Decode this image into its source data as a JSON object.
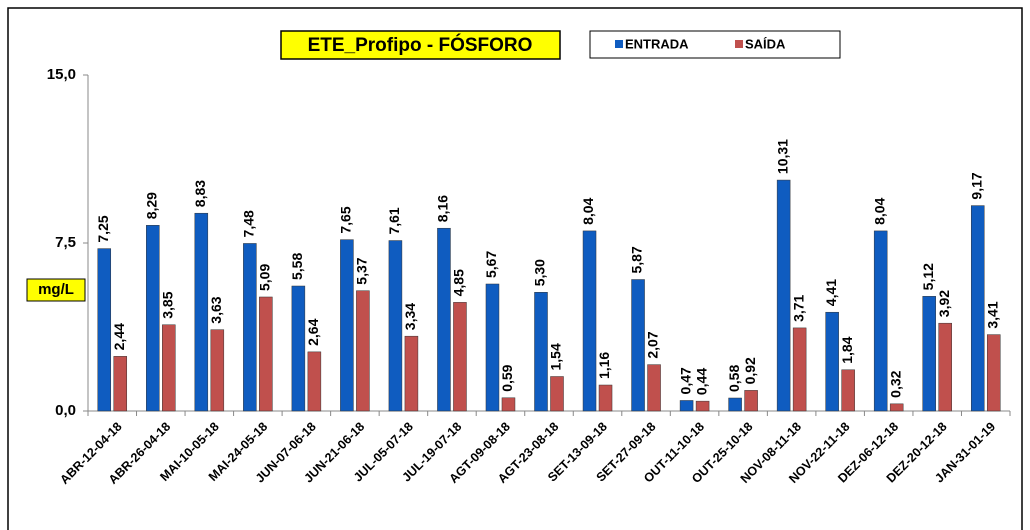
{
  "chart_data": {
    "type": "bar",
    "title": "ETE_Profipo - FÓSFORO",
    "y_label": "mg/L",
    "categories": [
      "ABR-12-04-18",
      "ABR-26-04-18",
      "MAI-10-05-18",
      "MAI-24-05-18",
      "JUN-07-06-18",
      "JUN-21-06-18",
      "JUL-05-07-18",
      "JUL-19-07-18",
      "AGT-09-08-18",
      "AGT-23-08-18",
      "SET-13-09-18",
      "SET-27-09-18",
      "OUT-11-10-18",
      "OUT-25-10-18",
      "NOV-08-11-18",
      "NOV-22-11-18",
      "DEZ-06-12-18",
      "DEZ-20-12-18",
      "JAN-31-01-19"
    ],
    "series": [
      {
        "name": "ENTRADA",
        "color": "#0f5cc0",
        "values": [
          7.25,
          8.29,
          8.83,
          7.48,
          5.58,
          7.65,
          7.61,
          8.16,
          5.67,
          5.3,
          8.04,
          5.87,
          0.47,
          0.58,
          10.31,
          4.41,
          8.04,
          5.12,
          9.17
        ],
        "value_labels": [
          "7,25",
          "8,29",
          "8,83",
          "7,48",
          "5,58",
          "7,65",
          "7,61",
          "8,16",
          "5,67",
          "5,30",
          "8,04",
          "5,87",
          "0,47",
          "0,58",
          "10,31",
          "4,41",
          "8,04",
          "5,12",
          "9,17"
        ]
      },
      {
        "name": "SAÍDA",
        "color": "#c0504d",
        "values": [
          2.44,
          3.85,
          3.63,
          5.09,
          2.64,
          5.37,
          3.34,
          4.85,
          0.59,
          1.54,
          1.16,
          2.07,
          0.44,
          0.92,
          3.71,
          1.84,
          0.32,
          3.92,
          3.41
        ],
        "value_labels": [
          "2,44",
          "3,85",
          "3,63",
          "5,09",
          "2,64",
          "5,37",
          "3,34",
          "4,85",
          "0,59",
          "1,54",
          "1,16",
          "2,07",
          "0,44",
          "0,92",
          "3,71",
          "1,84",
          "0,32",
          "3,92",
          "3,41"
        ]
      }
    ],
    "ylim": [
      0,
      15
    ],
    "yticks": [
      {
        "value": 0,
        "label": "0,0"
      },
      {
        "value": 7.5,
        "label": "7,5"
      },
      {
        "value": 15,
        "label": "15,0"
      }
    ],
    "grid": false,
    "legend": "top"
  }
}
